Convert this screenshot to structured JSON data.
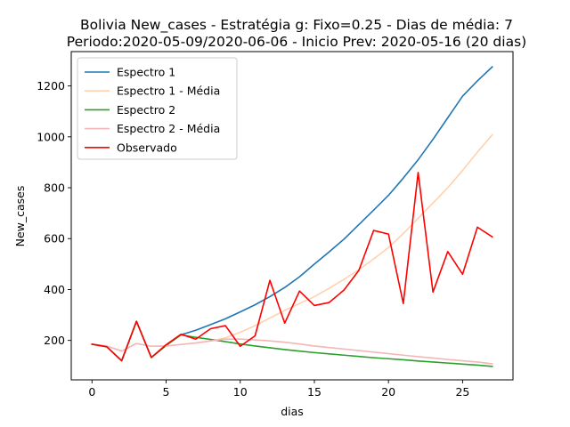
{
  "chart_data": {
    "type": "line",
    "title_line1": "Bolivia New_cases - Estratégia g: Fixo=0.25 - Dias de média: 7",
    "title_line2": "Periodo:2020-05-09/2020-06-06 - Inicio Prev: 2020-05-16 (20 dias)",
    "xlabel": "dias",
    "ylabel": "New_cases",
    "xlim": [
      -1.4,
      28.4
    ],
    "ylim": [
      45,
      1335
    ],
    "xticks": [
      0,
      5,
      10,
      15,
      20,
      25
    ],
    "yticks": [
      200,
      400,
      600,
      800,
      1000,
      1200
    ],
    "legend_position": "upper-left",
    "series": [
      {
        "name": "Espectro 1",
        "color": "#1f77b4",
        "x": [
          0,
          1,
          2,
          3,
          4,
          5,
          6,
          7,
          8,
          9,
          10,
          11,
          12,
          13,
          14,
          15,
          16,
          17,
          18,
          19,
          20,
          21,
          22,
          23,
          24,
          25,
          26,
          27
        ],
        "y": [
          185,
          175,
          120,
          275,
          133,
          180,
          222,
          240,
          262,
          285,
          312,
          340,
          372,
          408,
          450,
          500,
          548,
          598,
          655,
          712,
          770,
          838,
          910,
          990,
          1075,
          1160,
          1220,
          1275
        ]
      },
      {
        "name": "Espectro 1 - Média",
        "color": "#ffd1ae",
        "x": [
          0,
          1,
          2,
          3,
          4,
          5,
          6,
          7,
          8,
          9,
          10,
          11,
          12,
          13,
          14,
          15,
          16,
          17,
          18,
          19,
          20,
          21,
          22,
          23,
          24,
          25,
          26,
          27
        ],
        "y": [
          185,
          178,
          158,
          188,
          177,
          178,
          184,
          190,
          198,
          210,
          232,
          258,
          288,
          318,
          345,
          372,
          405,
          440,
          478,
          520,
          565,
          620,
          680,
          740,
          800,
          868,
          940,
          1008
        ]
      },
      {
        "name": "Espectro 2",
        "color": "#2ca02c",
        "x": [
          0,
          1,
          2,
          3,
          4,
          5,
          6,
          7,
          8,
          9,
          10,
          11,
          12,
          13,
          14,
          15,
          16,
          17,
          18,
          19,
          20,
          21,
          22,
          23,
          24,
          25,
          26,
          27
        ],
        "y": [
          185,
          175,
          120,
          275,
          133,
          180,
          222,
          212,
          204,
          195,
          186,
          178,
          171,
          164,
          158,
          152,
          147,
          142,
          137,
          132,
          128,
          124,
          119,
          115,
          111,
          107,
          103,
          98
        ]
      },
      {
        "name": "Espectro 2 - Média",
        "color": "#f4b6b6",
        "x": [
          0,
          1,
          2,
          3,
          4,
          5,
          6,
          7,
          8,
          9,
          10,
          11,
          12,
          13,
          14,
          15,
          16,
          17,
          18,
          19,
          20,
          21,
          22,
          23,
          24,
          25,
          26,
          27
        ],
        "y": [
          185,
          178,
          158,
          188,
          177,
          178,
          184,
          190,
          198,
          205,
          205,
          202,
          198,
          193,
          186,
          178,
          172,
          166,
          160,
          154,
          148,
          142,
          136,
          131,
          125,
          120,
          115,
          108
        ]
      },
      {
        "name": "Observado",
        "color": "#ff0000",
        "x": [
          0,
          1,
          2,
          3,
          4,
          5,
          6,
          7,
          8,
          9,
          10,
          11,
          12,
          13,
          14,
          15,
          16,
          17,
          18,
          19,
          20,
          21,
          22,
          23,
          24,
          25,
          26,
          27
        ],
        "y": [
          185,
          175,
          120,
          275,
          133,
          183,
          224,
          205,
          246,
          258,
          177,
          218,
          436,
          268,
          394,
          337,
          349,
          398,
          475,
          632,
          618,
          345,
          860,
          390,
          549,
          460,
          645,
          607
        ]
      }
    ]
  }
}
